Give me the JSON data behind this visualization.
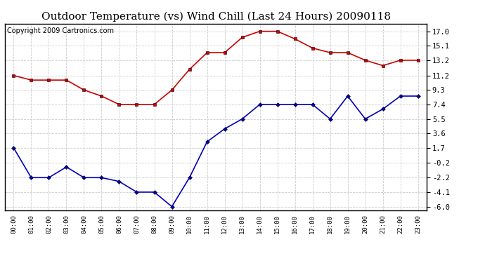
{
  "title": "Outdoor Temperature (vs) Wind Chill (Last 24 Hours) 20090118",
  "copyright": "Copyright 2009 Cartronics.com",
  "x_labels": [
    "00:00",
    "01:00",
    "02:00",
    "03:00",
    "04:00",
    "05:00",
    "06:00",
    "07:00",
    "08:00",
    "09:00",
    "10:00",
    "11:00",
    "12:00",
    "13:00",
    "14:00",
    "15:00",
    "16:00",
    "17:00",
    "18:00",
    "19:00",
    "20:00",
    "21:00",
    "22:00",
    "23:00"
  ],
  "temp_red": [
    11.2,
    10.6,
    10.6,
    10.6,
    9.3,
    8.5,
    7.4,
    7.4,
    7.4,
    9.3,
    12.0,
    14.2,
    14.2,
    16.2,
    17.0,
    17.0,
    16.0,
    14.8,
    14.2,
    14.2,
    13.2,
    12.5,
    13.2,
    13.2
  ],
  "wind_blue": [
    1.7,
    -2.2,
    -2.2,
    -0.8,
    -2.2,
    -2.2,
    -2.7,
    -4.1,
    -4.1,
    -6.0,
    -2.2,
    2.5,
    4.2,
    5.5,
    7.4,
    7.4,
    7.4,
    7.4,
    5.5,
    8.5,
    5.5,
    6.8,
    8.5,
    8.5
  ],
  "ylim": [
    -6.5,
    18.0
  ],
  "yticks": [
    17.0,
    15.1,
    13.2,
    11.2,
    9.3,
    7.4,
    5.5,
    3.6,
    1.7,
    -0.2,
    -2.2,
    -4.1,
    -6.0
  ],
  "red_color": "#cc0000",
  "blue_color": "#0000bb",
  "grid_color": "#cccccc",
  "bg_color": "#ffffff",
  "title_fontsize": 11,
  "copyright_fontsize": 7
}
